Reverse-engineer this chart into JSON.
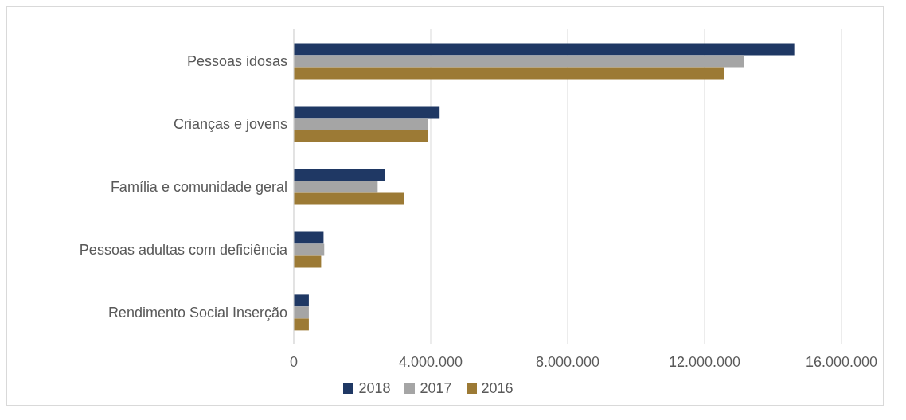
{
  "chart_data": {
    "type": "bar",
    "orientation": "horizontal",
    "categories": [
      "Pessoas idosas",
      "Crianças e jovens",
      "Família e comunidade geral",
      "Pessoas adultas com deficiência",
      "Rendimento  Social Inserção"
    ],
    "series": [
      {
        "name": "2018",
        "color": "#1f3864",
        "values": [
          14620000,
          4260000,
          2660000,
          870000,
          440000
        ]
      },
      {
        "name": "2017",
        "color": "#a5a5a5",
        "values": [
          13160000,
          3920000,
          2450000,
          890000,
          440000
        ]
      },
      {
        "name": "2016",
        "color": "#9c7a35",
        "values": [
          12580000,
          3920000,
          3210000,
          800000,
          440000
        ]
      }
    ],
    "xlim": [
      0,
      16000000
    ],
    "xticks": [
      0,
      {
        "value": 4000000,
        "label": "4.000.000"
      },
      {
        "value": 8000000,
        "label": "8.000.000"
      },
      {
        "value": 12000000,
        "label": "12.000.000"
      },
      {
        "value": 16000000,
        "label": "16.000.000"
      }
    ],
    "grid": "x",
    "legend": "bottom"
  }
}
